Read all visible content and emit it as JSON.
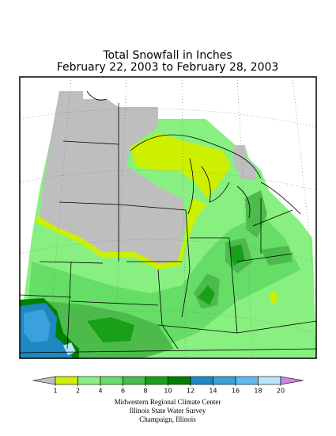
{
  "title": [
    "Total Snowfall in Inches",
    "February 22, 2003 to February 28, 2003"
  ],
  "legend": {
    "ticks": [
      1,
      2,
      4,
      6,
      8,
      10,
      12,
      14,
      16,
      18,
      20
    ],
    "colors": [
      "#bebebe",
      "#ccf000",
      "#88f080",
      "#66dd66",
      "#4cbb4c",
      "#18a018",
      "#007f00",
      "#1e88c0",
      "#3ca0dc",
      "#60b8f0",
      "#b8e4fa",
      "#cc88e0"
    ]
  },
  "footer": [
    "Midwestern Regional Climate Center",
    "Illinois State Water Survey",
    "Champaign, Illinois"
  ]
}
